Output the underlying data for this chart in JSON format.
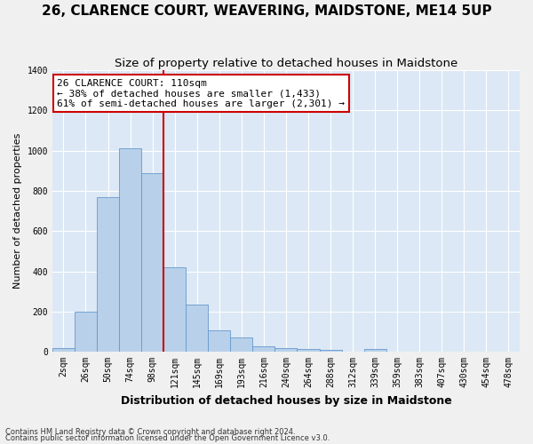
{
  "title": "26, CLARENCE COURT, WEAVERING, MAIDSTONE, ME14 5UP",
  "subtitle": "Size of property relative to detached houses in Maidstone",
  "xlabel": "Distribution of detached houses by size in Maidstone",
  "ylabel": "Number of detached properties",
  "footnote1": "Contains HM Land Registry data © Crown copyright and database right 2024.",
  "footnote2": "Contains public sector information licensed under the Open Government Licence v3.0.",
  "bar_labels": [
    "2sqm",
    "26sqm",
    "50sqm",
    "74sqm",
    "98sqm",
    "121sqm",
    "145sqm",
    "169sqm",
    "193sqm",
    "216sqm",
    "240sqm",
    "264sqm",
    "288sqm",
    "312sqm",
    "339sqm",
    "359sqm",
    "383sqm",
    "407sqm",
    "430sqm",
    "454sqm",
    "478sqm"
  ],
  "bar_values": [
    20,
    200,
    770,
    1010,
    890,
    420,
    235,
    108,
    70,
    26,
    20,
    12,
    8,
    0,
    15,
    0,
    0,
    0,
    0,
    0,
    0
  ],
  "bar_color": "#b8d0ea",
  "bar_edge_color": "#6699cc",
  "vline_x": 4.5,
  "vline_color": "#cc0000",
  "annotation_text": "26 CLARENCE COURT: 110sqm\n← 38% of detached houses are smaller (1,433)\n61% of semi-detached houses are larger (2,301) →",
  "annotation_box_color": "#cc0000",
  "annotation_box_fill": "#ffffff",
  "ylim": [
    0,
    1400
  ],
  "yticks": [
    0,
    200,
    400,
    600,
    800,
    1000,
    1200,
    1400
  ],
  "background_color": "#dce8f5",
  "grid_color": "#ffffff",
  "fig_background": "#f0f0f0",
  "title_fontsize": 11,
  "subtitle_fontsize": 9.5,
  "xlabel_fontsize": 9,
  "ylabel_fontsize": 8,
  "tick_fontsize": 7,
  "annotation_fontsize": 8,
  "footnote_fontsize": 6
}
